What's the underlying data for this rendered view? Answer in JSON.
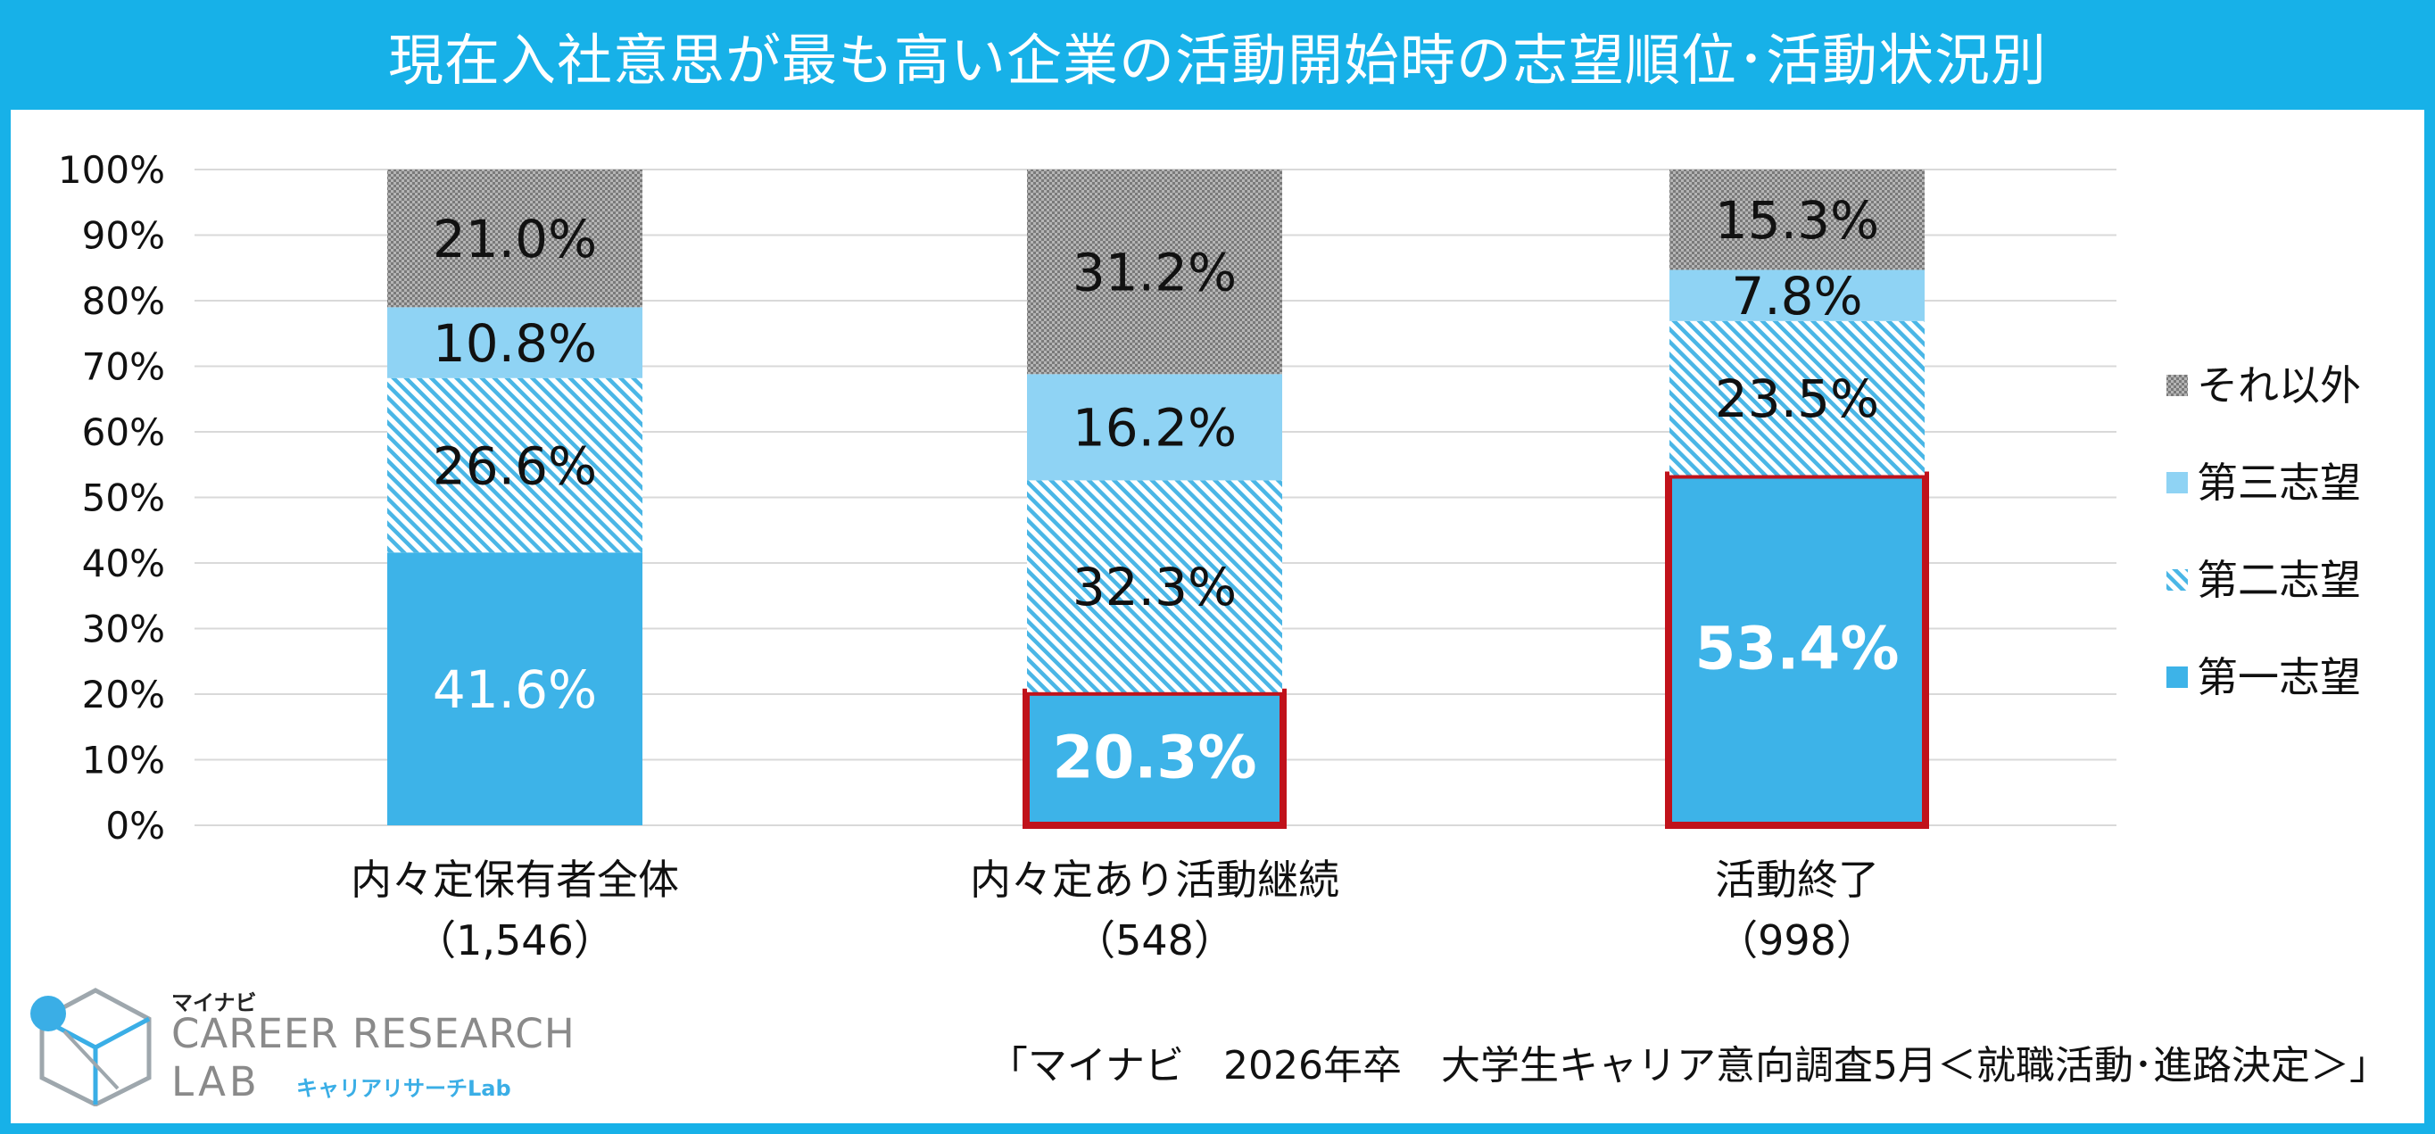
{
  "title": "現在入社意思が最も高い企業の活動開始時の志望順位･活動状況別",
  "source": "「マイナビ　2026年卒　大学生キャリア意向調査5月＜就職活動･進路決定＞」",
  "logo": {
    "kana": "マイナビ",
    "line1": "CAREER RESEARCH",
    "line2": "LAB",
    "sub": "キャリアリサーチLab"
  },
  "colors": {
    "frame": "#17b1e8",
    "first": "#3db3e8",
    "second_pattern": "#4ab6e6",
    "third": "#8fd3f4",
    "other_pattern": "#8c8c8c",
    "highlight": "#c0121b"
  },
  "chart_data": {
    "type": "bar",
    "stacked": true,
    "categories": [
      "内々定保有者全体",
      "内々定あり活動継続",
      "活動終了"
    ],
    "category_counts": [
      "（1,546）",
      "（548）",
      "（998）"
    ],
    "series": [
      {
        "name": "第一志望",
        "values": [
          41.6,
          20.3,
          53.4
        ],
        "labels": [
          "41.6%",
          "20.3%",
          "53.4%"
        ]
      },
      {
        "name": "第二志望",
        "values": [
          26.6,
          32.3,
          23.5
        ],
        "labels": [
          "26.6%",
          "32.3%",
          "23.5%"
        ]
      },
      {
        "name": "第三志望",
        "values": [
          10.8,
          16.2,
          7.8
        ],
        "labels": [
          "10.8%",
          "16.2%",
          "7.8%"
        ]
      },
      {
        "name": "それ以外",
        "values": [
          21.0,
          31.2,
          15.3
        ],
        "labels": [
          "21.0%",
          "31.2%",
          "15.3%"
        ]
      }
    ],
    "ylim": [
      0,
      100
    ],
    "yticks": [
      "0%",
      "10%",
      "20%",
      "30%",
      "40%",
      "50%",
      "60%",
      "70%",
      "80%",
      "90%",
      "100%"
    ],
    "legend_position": "right",
    "legend_order": [
      "それ以外",
      "第三志望",
      "第二志望",
      "第一志望"
    ],
    "highlighted": [
      "内々定あり活動継続:第一志望",
      "活動終了:第一志望"
    ],
    "grid": true
  }
}
